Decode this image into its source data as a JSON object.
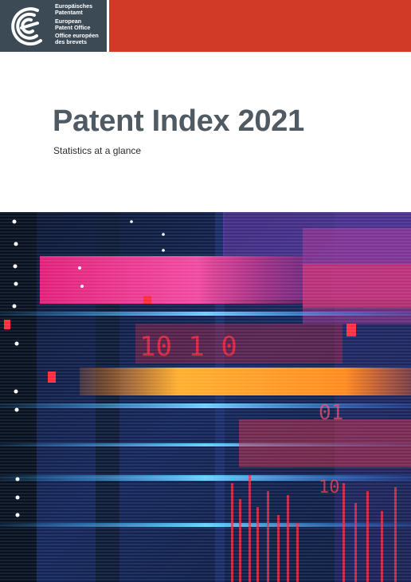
{
  "header": {
    "brand_color": "#d03a26",
    "logo_block_color": "#3c4a55",
    "logo_icon": "epo-logo-icon",
    "logo_lines_de": [
      "Europäisches",
      "Patentamt"
    ],
    "logo_lines_en": [
      "European",
      "Patent Office"
    ],
    "logo_lines_fr": [
      "Office européen",
      "des brevets"
    ]
  },
  "cover": {
    "title": "Patent Index 2021",
    "subtitle": "Statistics at a glance",
    "image_icon": "data-center-illustration"
  }
}
